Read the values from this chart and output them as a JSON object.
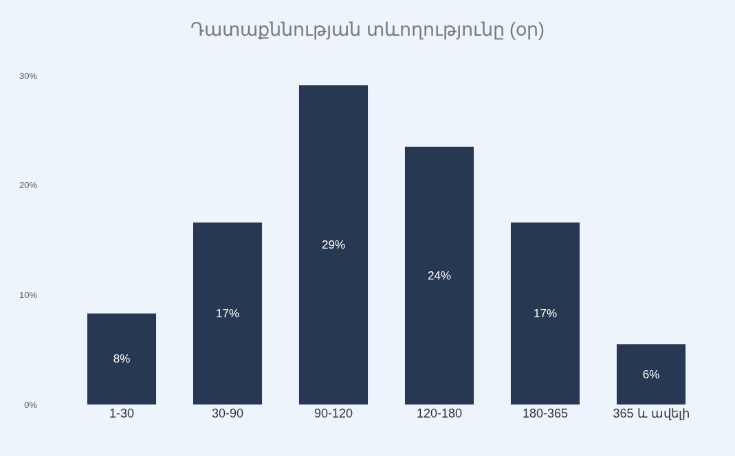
{
  "chart_data": {
    "type": "bar",
    "title": "Դատաքննության տևողությունը (օր)",
    "categories": [
      "1-30",
      "30-90",
      "90-120",
      "120-180",
      "180-365",
      "365 և ավելի"
    ],
    "values": [
      8.3,
      16.6,
      29.1,
      23.5,
      16.6,
      5.5
    ],
    "value_labels": [
      "8%",
      "17%",
      "29%",
      "24%",
      "17%",
      "6%"
    ],
    "color": "#263852",
    "ylim": [
      0,
      30
    ],
    "yticks": [
      {
        "value": 0,
        "label": "0%"
      },
      {
        "value": 10,
        "label": "10%"
      },
      {
        "value": 20,
        "label": "20%"
      },
      {
        "value": 30,
        "label": "30%"
      }
    ],
    "grid": false,
    "legend": false
  }
}
